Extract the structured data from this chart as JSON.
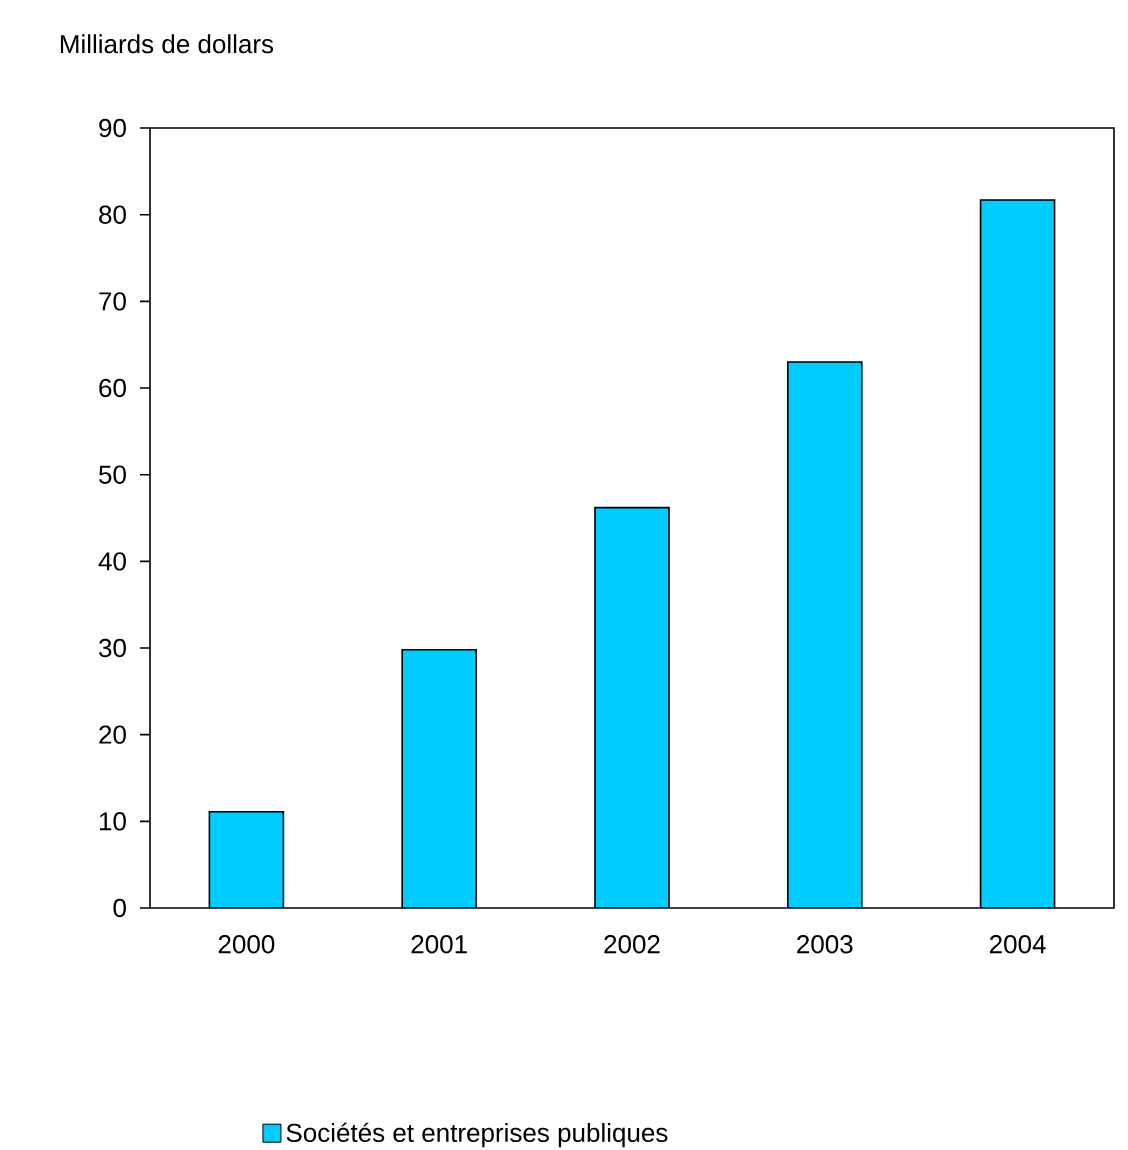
{
  "chart_data": {
    "type": "bar",
    "ylabel": "Milliards de dollars",
    "categories": [
      "2000",
      "2001",
      "2002",
      "2003",
      "2004"
    ],
    "series": [
      {
        "name": "Sociétés et entreprises publiques",
        "color": "#00ccff",
        "values": [
          11.1,
          29.8,
          46.2,
          63,
          81.7
        ]
      }
    ],
    "ylim": [
      0,
      90
    ],
    "yticks": [
      0,
      10,
      20,
      30,
      40,
      50,
      60,
      70,
      80,
      90
    ],
    "legend": "bottom"
  }
}
